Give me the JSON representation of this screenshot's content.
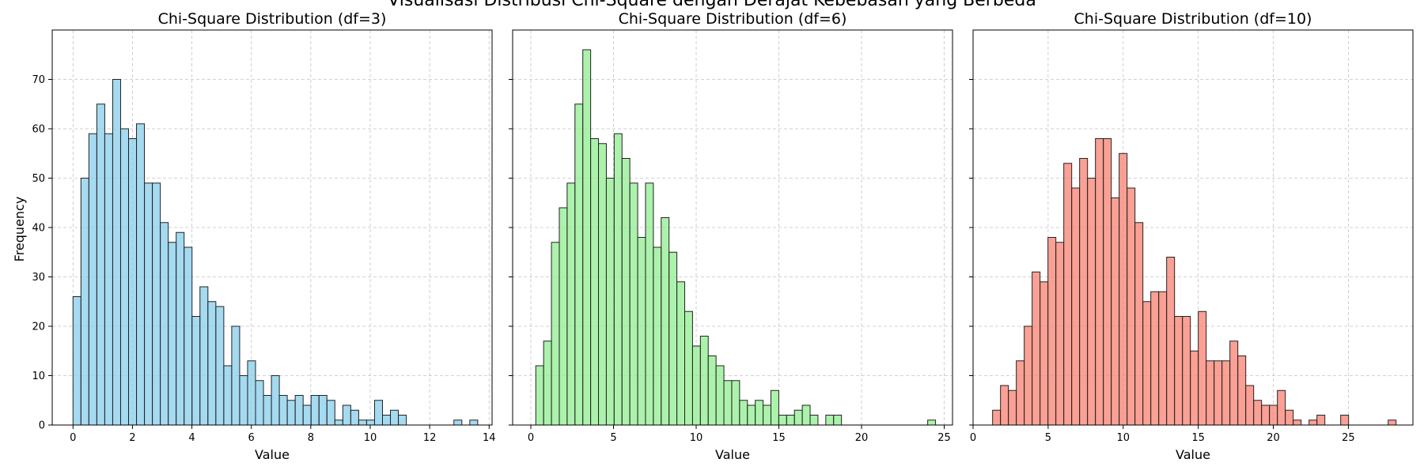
{
  "figure": {
    "suptitle": "Visualisasi Distribusi Chi-Square dengan Derajat Kebebasan yang Berbeda"
  },
  "chart_data": [
    {
      "type": "bar",
      "title": "Chi-Square Distribution (df=3)",
      "xlabel": "Value",
      "ylabel": "Frequency",
      "color": "#87ceeb",
      "xlim": [
        -0.7,
        14.1
      ],
      "ylim": [
        0,
        80
      ],
      "xticks": [
        0,
        2,
        4,
        6,
        8,
        10,
        12,
        14
      ],
      "yticks": [
        0,
        10,
        20,
        30,
        40,
        50,
        60,
        70
      ],
      "grid": true,
      "bin_start": 0.0,
      "bin_width": 0.267,
      "values": [
        26,
        50,
        59,
        65,
        59,
        70,
        60,
        58,
        61,
        49,
        49,
        41,
        37,
        39,
        36,
        22,
        28,
        25,
        24,
        12,
        20,
        10,
        13,
        9,
        6,
        10,
        6,
        5,
        6,
        4,
        6,
        6,
        5,
        1,
        4,
        3,
        1,
        1,
        5,
        2,
        3,
        2,
        0,
        0,
        0,
        0,
        0,
        0,
        1,
        0,
        1
      ]
    },
    {
      "type": "bar",
      "title": "Chi-Square Distribution (df=6)",
      "xlabel": "Value",
      "ylabel": "",
      "color": "#90ee90",
      "xlim": [
        -1.1,
        25.5
      ],
      "ylim": [
        0,
        80
      ],
      "xticks": [
        0,
        5,
        10,
        15,
        20,
        25
      ],
      "yticks": [
        0,
        10,
        20,
        30,
        40,
        50,
        60,
        70
      ],
      "grid": true,
      "bin_start": 0.3,
      "bin_width": 0.474,
      "values": [
        12,
        17,
        37,
        44,
        49,
        65,
        76,
        58,
        57,
        50,
        59,
        54,
        49,
        38,
        49,
        36,
        42,
        35,
        29,
        23,
        16,
        18,
        14,
        12,
        9,
        9,
        5,
        4,
        5,
        4,
        7,
        2,
        2,
        3,
        4,
        2,
        0,
        2,
        2,
        0,
        0,
        0,
        0,
        0,
        0,
        0,
        0,
        0,
        0,
        0,
        1
      ]
    },
    {
      "type": "bar",
      "title": "Chi-Square Distribution (df=10)",
      "xlabel": "Value",
      "ylabel": "",
      "color": "#fa8072",
      "xlim": [
        0,
        29.3
      ],
      "ylim": [
        0,
        80
      ],
      "xticks": [
        0,
        5,
        10,
        15,
        20,
        25
      ],
      "yticks": [
        0,
        10,
        20,
        30,
        40,
        50,
        60,
        70
      ],
      "grid": true,
      "bin_start": 1.3,
      "bin_width": 0.527,
      "values": [
        3,
        8,
        7,
        13,
        20,
        31,
        29,
        38,
        37,
        53,
        48,
        54,
        50,
        58,
        58,
        46,
        55,
        48,
        41,
        25,
        27,
        27,
        34,
        22,
        22,
        15,
        23,
        13,
        13,
        13,
        17,
        14,
        8,
        5,
        4,
        4,
        7,
        3,
        1,
        0,
        1,
        2,
        0,
        0,
        2,
        0,
        0,
        0,
        0,
        0,
        1
      ]
    }
  ]
}
